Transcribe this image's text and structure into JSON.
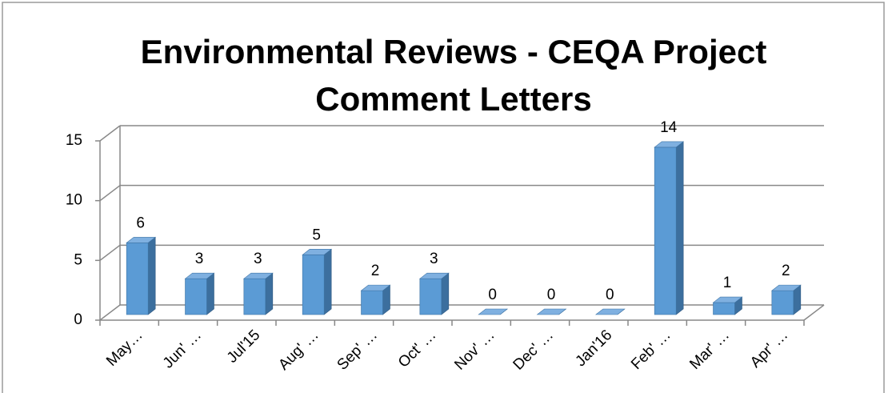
{
  "chart_data": {
    "type": "bar3d",
    "title": "Environmental Reviews - CEQA Project Comment Letters",
    "categories": [
      "May…",
      "Jun' …",
      "Jul'15",
      "Aug' …",
      "Sep' …",
      "Oct' …",
      "Nov' …",
      "Dec' …",
      "Jan'16",
      "Feb' …",
      "Mar' …",
      "Apr' …"
    ],
    "values": [
      6,
      3,
      3,
      5,
      2,
      3,
      0,
      0,
      0,
      14,
      1,
      2
    ],
    "color": "#5b9bd5",
    "ylim": [
      0,
      15
    ],
    "yticks": [
      0,
      5,
      10,
      15
    ],
    "grid": true
  }
}
